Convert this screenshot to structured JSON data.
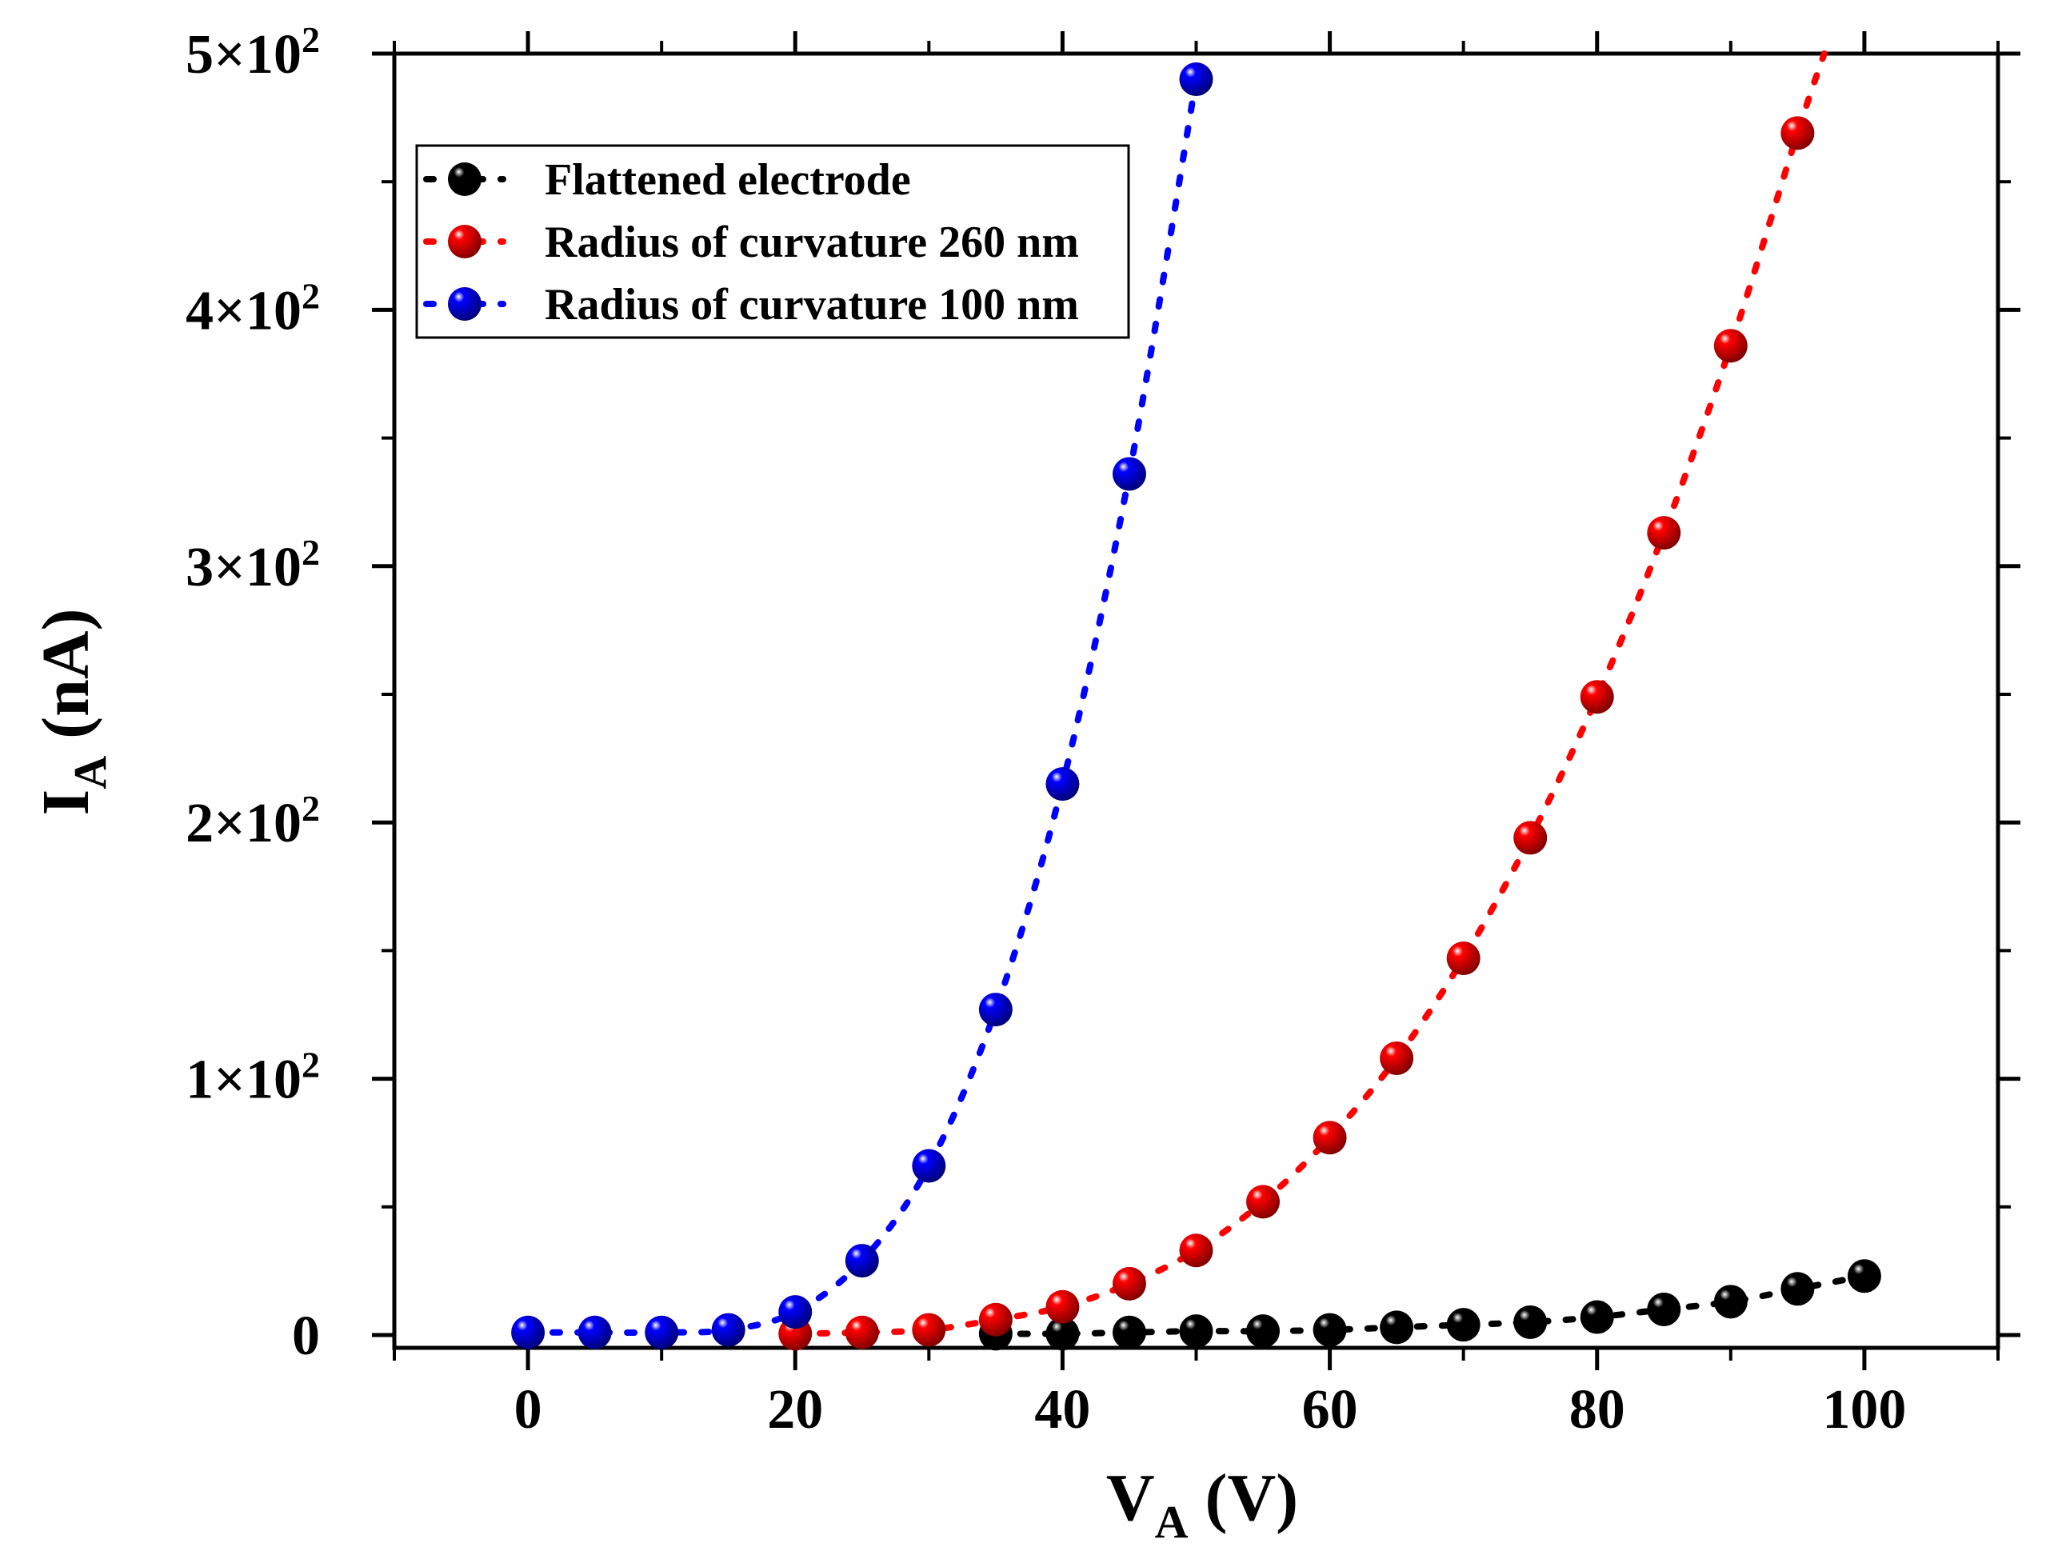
{
  "chart_data": {
    "type": "scatter",
    "title": "",
    "xlabel": {
      "main": "V",
      "sub": "A",
      "unit": " (V)"
    },
    "ylabel": {
      "main": "I",
      "sub": "A",
      "unit": " (nA)"
    },
    "xlim": [
      -10,
      110
    ],
    "ylim": [
      -5,
      500
    ],
    "x_ticks": [
      0,
      20,
      40,
      60,
      80,
      100
    ],
    "x_tick_labels": [
      "0",
      "20",
      "40",
      "60",
      "80",
      "100"
    ],
    "x_minor_ticks": [
      -10,
      10,
      30,
      50,
      70,
      90,
      110
    ],
    "y_ticks": [
      0,
      100,
      200,
      300,
      400,
      500
    ],
    "y_tick_labels": [
      {
        "base": "0",
        "exp": ""
      },
      {
        "base": "1×10",
        "exp": "2"
      },
      {
        "base": "2×10",
        "exp": "2"
      },
      {
        "base": "3×10",
        "exp": "2"
      },
      {
        "base": "4×10",
        "exp": "2"
      },
      {
        "base": "5×10",
        "exp": "2"
      }
    ],
    "y_minor_ticks": [
      50,
      150,
      250,
      350,
      450
    ],
    "grid": false,
    "legend_position": "top-left",
    "series": [
      {
        "name": "Flattened electrode",
        "color": "#000000",
        "x": [
          35,
          40,
          45,
          50,
          55,
          60,
          65,
          70,
          75,
          80,
          85,
          90,
          95,
          100
        ],
        "y": [
          0.5,
          0.5,
          1,
          1.5,
          1.5,
          2,
          3,
          4,
          5,
          7,
          10,
          13,
          18,
          23
        ]
      },
      {
        "name": "Radius of curvature 260 nm",
        "color": "#ff0000",
        "x": [
          20,
          25,
          30,
          35,
          40,
          45,
          50,
          55,
          60,
          65,
          70,
          75,
          80,
          85,
          90,
          95
        ],
        "y": [
          0.5,
          1,
          2,
          6,
          11,
          20,
          33,
          52,
          77,
          108,
          147,
          194,
          249,
          313,
          386,
          469
        ],
        "curve_extends_to": [
          97,
          500
        ]
      },
      {
        "name": "Radius of curvature 100 nm",
        "color": "#0000ff",
        "x": [
          0,
          5,
          10,
          15,
          20,
          25,
          30,
          35,
          40,
          45,
          50
        ],
        "y": [
          1,
          1,
          1,
          2,
          9,
          29,
          66,
          127,
          215,
          336,
          490
        ]
      }
    ]
  }
}
